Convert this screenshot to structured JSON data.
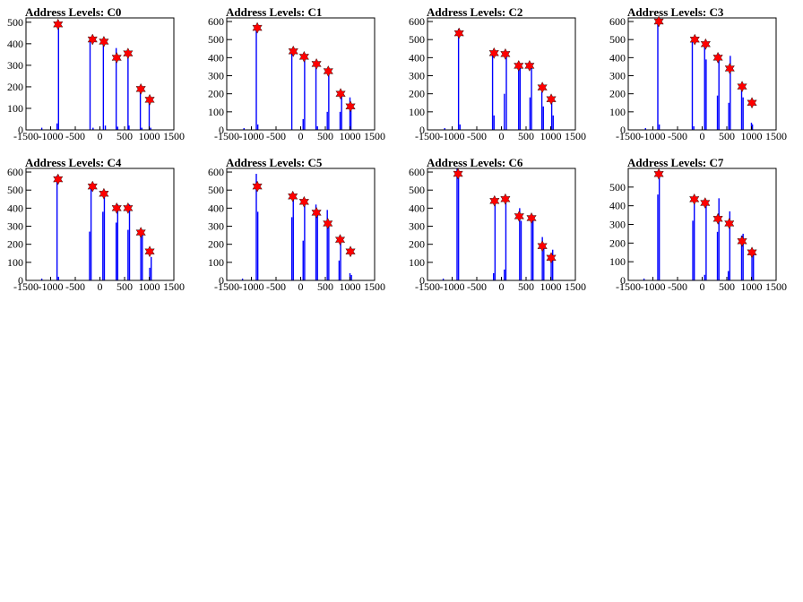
{
  "colors": {
    "histogram": "#0000ff",
    "marker": "#ff0000",
    "frame": "#000000"
  },
  "chart_data": [
    {
      "type": "bar",
      "title": "Address Levels: C0",
      "xlim": [
        -1500,
        1500
      ],
      "ylim": [
        0,
        520
      ],
      "xticks": [
        -1500,
        -1000,
        -500,
        0,
        500,
        1000,
        1500
      ],
      "yticks": [
        0,
        100,
        200,
        300,
        400,
        500
      ],
      "xtick_labels": [
        "-1500",
        "-1000",
        "-500",
        "0",
        "500",
        "1000",
        "1500"
      ],
      "ytick_labels": [
        "0",
        "100",
        "200",
        "300",
        "400",
        "500"
      ],
      "x": [
        -1180,
        -870,
        -840,
        -200,
        -140,
        70,
        110,
        330,
        360,
        570,
        590,
        820,
        850,
        1000,
        1030
      ],
      "values": [
        10,
        30,
        505,
        420,
        10,
        410,
        20,
        380,
        15,
        360,
        20,
        200,
        10,
        145,
        10
      ],
      "peaks": {
        "x": [
          -850,
          -150,
          80,
          340,
          570,
          830,
          1010
        ],
        "y": [
          490,
          420,
          410,
          335,
          355,
          190,
          140
        ]
      }
    },
    {
      "type": "bar",
      "title": "Address Levels: C1",
      "xlim": [
        -1500,
        1500
      ],
      "ylim": [
        0,
        620
      ],
      "xticks": [
        -1500,
        -1000,
        -500,
        0,
        500,
        1000,
        1500
      ],
      "yticks": [
        0,
        100,
        200,
        300,
        400,
        500,
        600
      ],
      "xtick_labels": [
        "-1500",
        "-1000",
        "-500",
        "0",
        "500",
        "1000",
        "1500"
      ],
      "ytick_labels": [
        "0",
        "100",
        "200",
        "300",
        "400",
        "500",
        "600"
      ],
      "x": [
        -1150,
        -900,
        -870,
        -180,
        50,
        80,
        310,
        340,
        540,
        570,
        800,
        830,
        1000,
        1020
      ],
      "values": [
        10,
        580,
        30,
        430,
        60,
        410,
        380,
        20,
        100,
        340,
        100,
        200,
        180,
        140
      ],
      "peaks": {
        "x": [
          -880,
          -150,
          70,
          320,
          560,
          810,
          1010
        ],
        "y": [
          565,
          435,
          405,
          365,
          325,
          200,
          130
        ]
      }
    },
    {
      "type": "bar",
      "title": "Address Levels: C2",
      "xlim": [
        -1500,
        1500
      ],
      "ylim": [
        0,
        620
      ],
      "xticks": [
        -1500,
        -1000,
        -500,
        0,
        500,
        1000,
        1500
      ],
      "yticks": [
        0,
        100,
        200,
        300,
        400,
        500,
        600
      ],
      "xtick_labels": [
        "-1500",
        "-1000",
        "-500",
        "0",
        "500",
        "1000",
        "1500"
      ],
      "ytick_labels": [
        "0",
        "100",
        "200",
        "300",
        "400",
        "500",
        "600"
      ],
      "x": [
        -1150,
        -870,
        -840,
        -180,
        -150,
        60,
        100,
        350,
        380,
        580,
        610,
        820,
        850,
        1020,
        1050
      ],
      "values": [
        10,
        560,
        30,
        420,
        80,
        200,
        430,
        380,
        350,
        180,
        370,
        210,
        130,
        180,
        80
      ],
      "peaks": {
        "x": [
          -860,
          -150,
          80,
          350,
          570,
          830,
          1010
        ],
        "y": [
          535,
          425,
          420,
          355,
          355,
          235,
          170
        ]
      }
    },
    {
      "type": "bar",
      "title": "Address Levels: C3",
      "xlim": [
        -1500,
        1500
      ],
      "ylim": [
        0,
        620
      ],
      "xticks": [
        -1500,
        -1000,
        -500,
        0,
        500,
        1000,
        1500
      ],
      "yticks": [
        0,
        100,
        200,
        300,
        400,
        500,
        600
      ],
      "xtick_labels": [
        "-1500",
        "-1000",
        "-500",
        "0",
        "500",
        "1000",
        "1500"
      ],
      "ytick_labels": [
        "0",
        "100",
        "200",
        "300",
        "400",
        "500",
        "600"
      ],
      "x": [
        -1150,
        -900,
        -870,
        -200,
        -170,
        50,
        80,
        310,
        340,
        540,
        570,
        800,
        830,
        1000,
        1020
      ],
      "values": [
        10,
        610,
        30,
        500,
        20,
        480,
        390,
        190,
        420,
        150,
        410,
        220,
        180,
        40,
        30
      ],
      "peaks": {
        "x": [
          -880,
          -150,
          70,
          320,
          560,
          810,
          1010
        ],
        "y": [
          600,
          500,
          475,
          400,
          340,
          240,
          150
        ]
      }
    },
    {
      "type": "bar",
      "title": "Address Levels: C4",
      "xlim": [
        -1500,
        1500
      ],
      "ylim": [
        0,
        620
      ],
      "xticks": [
        -1500,
        -1000,
        -500,
        0,
        500,
        1000,
        1500
      ],
      "yticks": [
        0,
        100,
        200,
        300,
        400,
        500,
        600
      ],
      "xtick_labels": [
        "-1500",
        "-1000",
        "-500",
        "0",
        "500",
        "1000",
        "1500"
      ],
      "ytick_labels": [
        "0",
        "100",
        "200",
        "300",
        "400",
        "500",
        "600"
      ],
      "x": [
        -1180,
        -870,
        -840,
        -210,
        -180,
        60,
        90,
        330,
        360,
        570,
        600,
        830,
        860,
        1010,
        1040
      ],
      "values": [
        10,
        580,
        20,
        270,
        520,
        380,
        490,
        320,
        420,
        280,
        420,
        250,
        270,
        70,
        130
      ],
      "peaks": {
        "x": [
          -850,
          -150,
          80,
          340,
          570,
          830,
          1010
        ],
        "y": [
          560,
          520,
          480,
          400,
          400,
          265,
          160
        ]
      }
    },
    {
      "type": "bar",
      "title": "Address Levels: C5",
      "xlim": [
        -1500,
        1500
      ],
      "ylim": [
        0,
        620
      ],
      "xticks": [
        -1500,
        -1000,
        -500,
        0,
        500,
        1000,
        1500
      ],
      "yticks": [
        0,
        100,
        200,
        300,
        400,
        500,
        600
      ],
      "xtick_labels": [
        "-1500",
        "-1000",
        "-500",
        "0",
        "500",
        "1000",
        "1500"
      ],
      "ytick_labels": [
        "0",
        "100",
        "200",
        "300",
        "400",
        "500",
        "600"
      ],
      "x": [
        -1180,
        -900,
        -870,
        -180,
        -150,
        50,
        80,
        310,
        340,
        540,
        570,
        780,
        810,
        1000,
        1030
      ],
      "values": [
        10,
        590,
        380,
        350,
        470,
        220,
        430,
        420,
        370,
        390,
        320,
        110,
        220,
        40,
        30
      ],
      "peaks": {
        "x": [
          -880,
          -160,
          70,
          320,
          550,
          800,
          1010
        ],
        "y": [
          520,
          465,
          435,
          375,
          315,
          225,
          160
        ]
      }
    },
    {
      "type": "bar",
      "title": "Address Levels: C6",
      "xlim": [
        -1500,
        1500
      ],
      "ylim": [
        0,
        620
      ],
      "xticks": [
        -1500,
        -1000,
        -500,
        0,
        500,
        1000,
        1500
      ],
      "yticks": [
        0,
        100,
        200,
        300,
        400,
        500,
        600
      ],
      "xtick_labels": [
        "-1500",
        "-1000",
        "-500",
        "0",
        "500",
        "1000",
        "1500"
      ],
      "ytick_labels": [
        "0",
        "100",
        "200",
        "300",
        "400",
        "500",
        "600"
      ],
      "x": [
        -1180,
        -900,
        -870,
        -160,
        -130,
        60,
        90,
        370,
        400,
        610,
        640,
        830,
        860,
        1010,
        1040
      ],
      "values": [
        10,
        620,
        580,
        40,
        440,
        60,
        460,
        400,
        330,
        350,
        360,
        240,
        190,
        130,
        170
      ],
      "peaks": {
        "x": [
          -880,
          -140,
          80,
          360,
          610,
          830,
          1010
        ],
        "y": [
          590,
          440,
          450,
          355,
          345,
          190,
          125
        ]
      }
    },
    {
      "type": "bar",
      "title": "Address Levels: C7",
      "xlim": [
        -1500,
        1500
      ],
      "ylim": [
        0,
        600
      ],
      "xticks": [
        -1500,
        -1000,
        -500,
        0,
        500,
        1000,
        1500
      ],
      "yticks": [
        0,
        100,
        200,
        300,
        400,
        500
      ],
      "xtick_labels": [
        "-1500",
        "-1000",
        "-500",
        "0",
        "500",
        "1000",
        "1500"
      ],
      "ytick_labels": [
        "0",
        "100",
        "200",
        "300",
        "400",
        "500"
      ],
      "x": [
        -1180,
        -900,
        -870,
        -190,
        -160,
        50,
        80,
        310,
        340,
        530,
        560,
        800,
        830,
        1010,
        1040
      ],
      "values": [
        10,
        460,
        580,
        320,
        440,
        30,
        410,
        260,
        440,
        50,
        370,
        240,
        250,
        150,
        160
      ],
      "peaks": {
        "x": [
          -880,
          -160,
          60,
          320,
          550,
          810,
          1010
        ],
        "y": [
          570,
          435,
          415,
          330,
          305,
          210,
          150
        ]
      }
    }
  ]
}
